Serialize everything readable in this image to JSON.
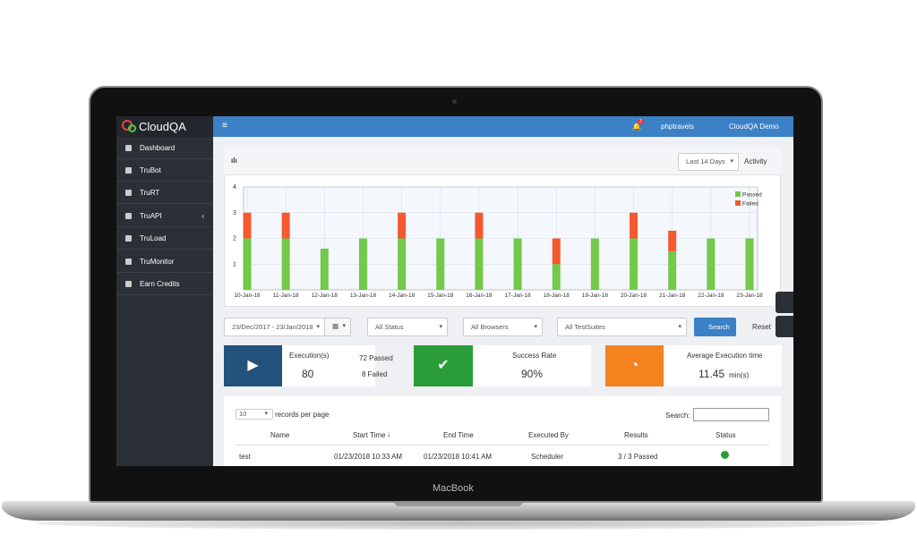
{
  "device": {
    "label": "MacBook"
  },
  "sidebar": {
    "logo": "CloudQA",
    "menu": [
      "Dashboard",
      "TruBot",
      "TruRT",
      "TruAPI",
      "TruLoad",
      "TruMonitor",
      "Earn Credits"
    ]
  },
  "topbar": {
    "notifications": "2",
    "project": "phptravels",
    "user": "CloudQA Demo"
  },
  "chart_panel": {
    "range": "Last 14 Days",
    "activity": "Activity"
  },
  "chart_data": {
    "type": "bar",
    "stacked": true,
    "grid": true,
    "legend": "top-right",
    "categories": [
      "10-Jan-18",
      "11-Jan-18",
      "12-Jan-18",
      "13-Jan-18",
      "14-Jan-18",
      "15-Jan-18",
      "16-Jan-18",
      "17-Jan-18",
      "18-Jan-18",
      "19-Jan-18",
      "20-Jan-18",
      "21-Jan-18",
      "22-Jan-18",
      "23-Jan-18"
    ],
    "series": [
      {
        "name": "Passed",
        "color": "#72c94a",
        "values": [
          2,
          2,
          1.6,
          2,
          2,
          2,
          2,
          2,
          1,
          2,
          2,
          1.5,
          2,
          2
        ]
      },
      {
        "name": "Failed",
        "color": "#f4592f",
        "values": [
          1,
          1,
          0,
          0,
          1,
          0,
          1,
          0,
          1,
          0,
          1,
          0.8,
          0,
          0
        ]
      }
    ],
    "ylim": [
      0,
      4
    ],
    "yticks": [
      1,
      2,
      3,
      4
    ]
  },
  "filters": {
    "date": "23/Dec/2017 - 23/Jan/2018",
    "status": "All Status",
    "browsers": "All Browsers",
    "suites": "All TestSuites",
    "search": "Search",
    "reset": "Reset"
  },
  "cards": [
    {
      "title": "Execution(s)",
      "value": "80",
      "passed": "72 Passed",
      "failed": "8 Failed"
    },
    {
      "title": "Success Rate",
      "value": "90%"
    },
    {
      "title": "Average Execution time",
      "value": "11.45",
      "unit": "min(s)"
    }
  ],
  "table": {
    "page_size": "10",
    "page_size_label": "records per page",
    "search_label": "Search:",
    "headers": [
      "Name",
      "Start Time",
      "End Time",
      "Executed By",
      "Results",
      "Status"
    ],
    "rows": [
      [
        "test",
        "01/23/2018 10:33 AM",
        "01/23/2018 10:41 AM",
        "Scheduler",
        "3 / 3 Passed"
      ]
    ]
  }
}
